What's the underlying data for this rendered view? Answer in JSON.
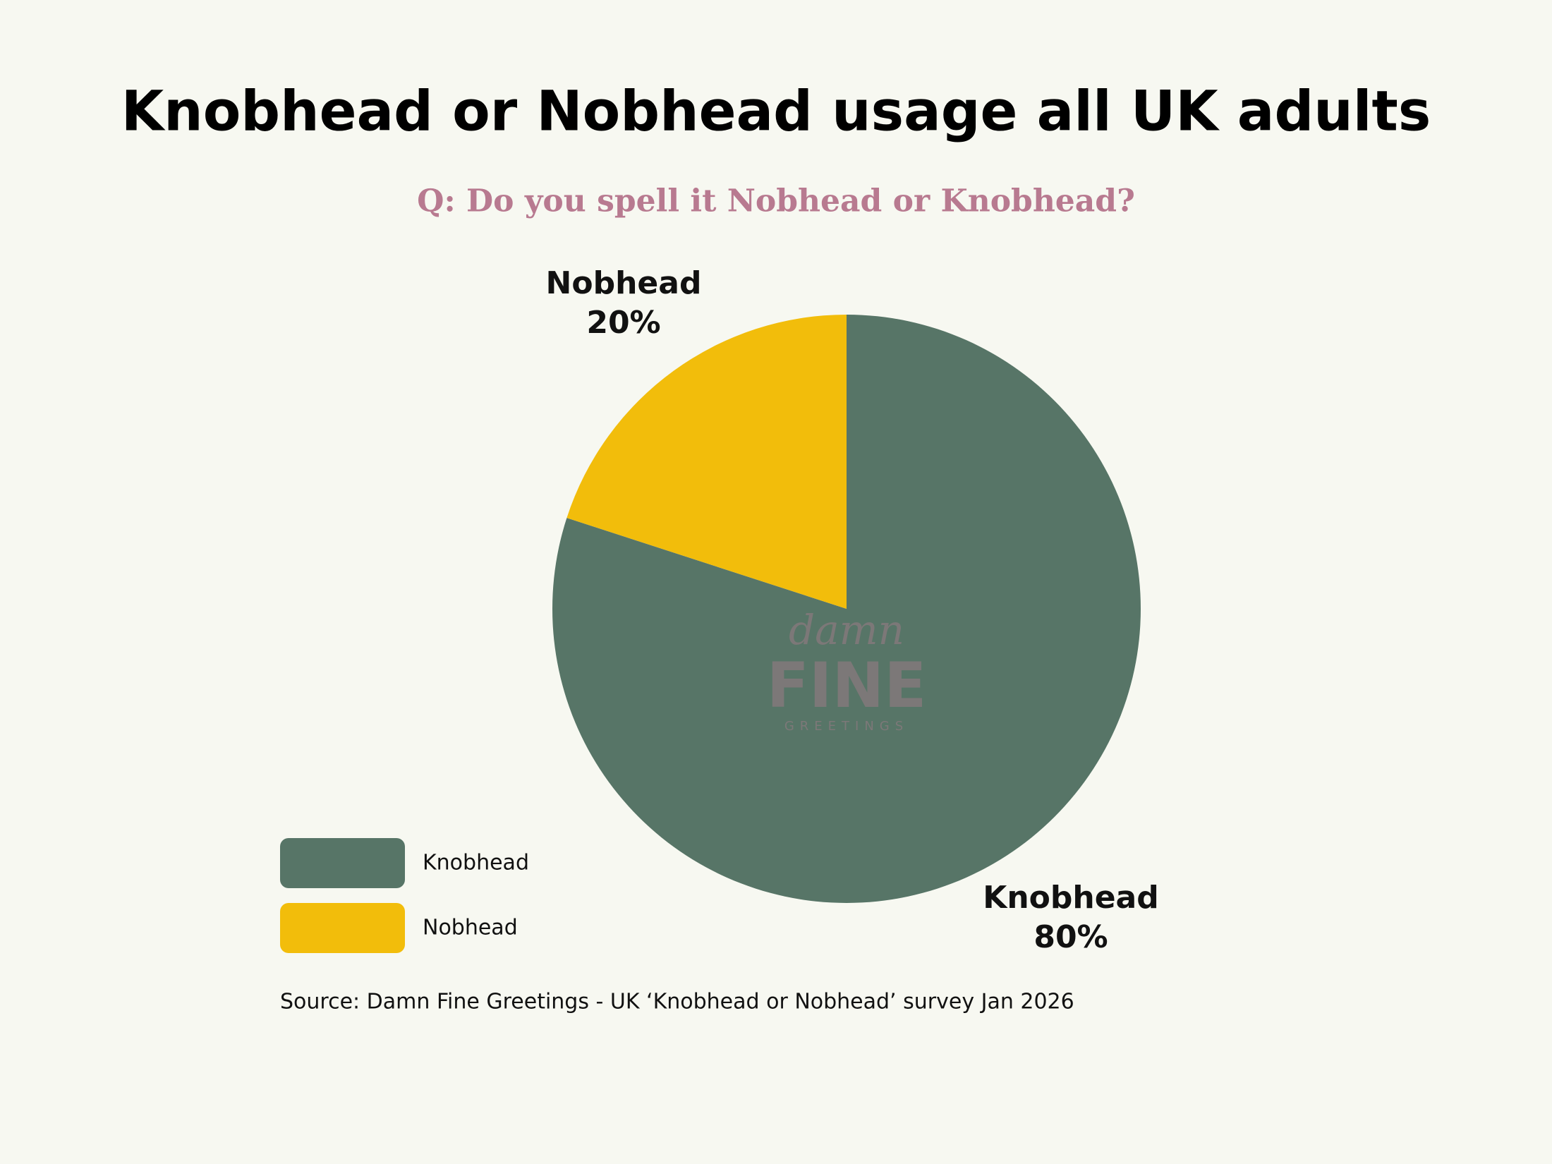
{
  "chart_data": {
    "type": "pie",
    "title": "Knobhead or Nobhead usage all UK adults",
    "subtitle": "Q: Do you spell it Nobhead or Knobhead?",
    "categories": [
      "Knobhead",
      "Nobhead"
    ],
    "values": [
      80,
      20
    ],
    "value_labels": [
      "80%",
      "20%"
    ],
    "colors": [
      "#577567",
      "#f2bd0b"
    ],
    "legend": "bottom-left",
    "source": "Source: Damn Fine Greetings - UK ‘Knobhead or Nobhead’ survey Jan 2026",
    "watermark": {
      "script": "damn",
      "main": "FINE",
      "sub": "GREETINGS"
    }
  }
}
